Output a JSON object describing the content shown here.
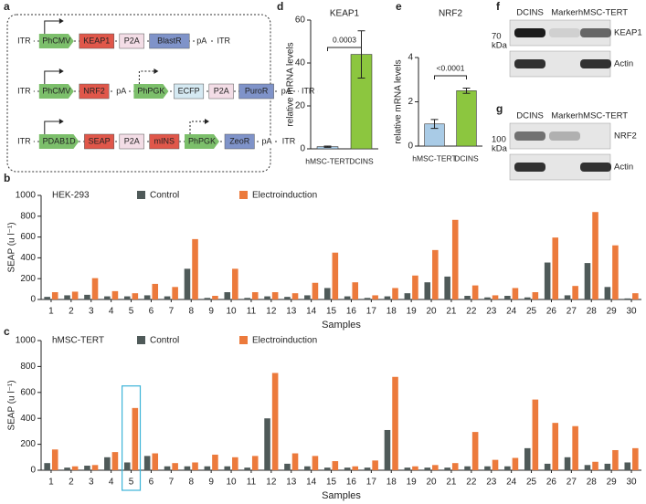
{
  "panel_labels": [
    "a",
    "b",
    "c",
    "d",
    "e",
    "f",
    "g"
  ],
  "diagram": {
    "rows": [
      [
        {
          "text": "ITR"
        },
        {
          "text": "PhCMV",
          "kind": "promoter",
          "color": "#7cbf6b"
        },
        {
          "text": "KEAP1",
          "color": "#e0574a"
        },
        {
          "text": "P2A",
          "color": "#f3dde6"
        },
        {
          "text": "BlastR",
          "color": "#7f93c9"
        },
        {
          "text": "pA"
        },
        {
          "text": "ITR"
        }
      ],
      [
        {
          "text": "ITR"
        },
        {
          "text": "PhCMV",
          "kind": "promoter",
          "color": "#7cbf6b"
        },
        {
          "text": "NRF2",
          "color": "#e0574a"
        },
        {
          "text": "pA"
        },
        {
          "text": "PhPGK",
          "kind": "promoter",
          "color": "#7cbf6b"
        },
        {
          "text": "ECFP",
          "color": "#d5e9f2"
        },
        {
          "text": "P2A",
          "color": "#f3dde6"
        },
        {
          "text": "PuroR",
          "color": "#7f93c9"
        },
        {
          "text": "pA"
        },
        {
          "text": "ITR"
        }
      ],
      [
        {
          "text": "ITR"
        },
        {
          "text": "PDAB1D",
          "kind": "promoter",
          "color": "#7cbf6b"
        },
        {
          "text": "SEAP",
          "color": "#e0574a"
        },
        {
          "text": "P2A",
          "color": "#f3dde6"
        },
        {
          "text": "mINS",
          "color": "#e0574a"
        },
        {
          "text": "PhPGK",
          "kind": "promoter",
          "color": "#7cbf6b"
        },
        {
          "text": "ZeoR",
          "color": "#7f93c9"
        },
        {
          "text": "pA"
        },
        {
          "text": "ITR"
        }
      ]
    ]
  },
  "blots": [
    {
      "headers": [
        "DCINS",
        "Marker",
        "hMSC-TERT"
      ],
      "size": "70",
      "unit": "kDa",
      "rows": [
        "KEAP1",
        "Actin"
      ]
    },
    {
      "headers": [
        "DCINS",
        "Marker",
        "hMSC-TERT"
      ],
      "size": "100",
      "unit": "kDa",
      "rows": [
        "NRF2",
        "Actin"
      ]
    }
  ],
  "chart_data": [
    {
      "type": "grouped_bar",
      "title": "HEK-293",
      "xlabel": "Samples",
      "ylabel": "SEAP (u l⁻¹)",
      "categories": [
        "1",
        "2",
        "3",
        "4",
        "5",
        "6",
        "7",
        "8",
        "9",
        "10",
        "11",
        "12",
        "13",
        "14",
        "15",
        "16",
        "17",
        "18",
        "19",
        "20",
        "21",
        "22",
        "23",
        "24",
        "25",
        "26",
        "27",
        "28",
        "29",
        "30"
      ],
      "series": [
        {
          "name": "Control",
          "color": "#4f5a59",
          "values": [
            25,
            40,
            45,
            30,
            30,
            40,
            30,
            295,
            15,
            70,
            15,
            30,
            25,
            40,
            110,
            30,
            15,
            30,
            60,
            165,
            220,
            35,
            20,
            35,
            20,
            355,
            40,
            350,
            120,
            10
          ]
        },
        {
          "name": "Electroinduction",
          "color": "#ec7a3c",
          "values": [
            70,
            75,
            205,
            80,
            60,
            150,
            120,
            580,
            35,
            295,
            70,
            70,
            60,
            160,
            450,
            165,
            40,
            110,
            230,
            475,
            765,
            135,
            40,
            110,
            70,
            595,
            130,
            840,
            520,
            60
          ]
        }
      ],
      "ylim": [
        0,
        1000
      ],
      "yticks": [
        0,
        200,
        400,
        600,
        800,
        1000
      ]
    },
    {
      "type": "grouped_bar",
      "title": "hMSC-TERT",
      "xlabel": "Samples",
      "ylabel": "SEAP (u l⁻¹)",
      "categories": [
        "1",
        "2",
        "3",
        "4",
        "5",
        "6",
        "7",
        "8",
        "9",
        "10",
        "11",
        "12",
        "13",
        "14",
        "15",
        "16",
        "17",
        "18",
        "19",
        "20",
        "21",
        "22",
        "23",
        "24",
        "25",
        "26",
        "27",
        "28",
        "29",
        "30"
      ],
      "series": [
        {
          "name": "Control",
          "color": "#4f5a59",
          "values": [
            55,
            20,
            35,
            100,
            60,
            110,
            30,
            30,
            30,
            30,
            20,
            400,
            50,
            30,
            20,
            20,
            20,
            310,
            20,
            20,
            20,
            30,
            30,
            30,
            170,
            50,
            100,
            40,
            50,
            60
          ]
        },
        {
          "name": "Electroinduction",
          "color": "#ec7a3c",
          "values": [
            160,
            30,
            40,
            140,
            480,
            130,
            55,
            60,
            120,
            100,
            110,
            750,
            130,
            110,
            70,
            30,
            75,
            720,
            30,
            40,
            55,
            295,
            80,
            95,
            545,
            365,
            340,
            65,
            155,
            170
          ]
        }
      ],
      "ylim": [
        0,
        1000
      ],
      "yticks": [
        0,
        200,
        400,
        600,
        800,
        1000
      ]
    },
    {
      "type": "bar",
      "title": "KEAP1",
      "ylabel": "relative mRNA levels",
      "categories": [
        "hMSC-TERT",
        "DCINS"
      ],
      "values": [
        1,
        44
      ],
      "errors": [
        0.3,
        11
      ],
      "colors": [
        "#a9cbe6",
        "#8cc63f"
      ],
      "annotation": "0.0003",
      "ylim": [
        0,
        60
      ],
      "yticks": [
        0,
        20,
        40,
        60
      ]
    },
    {
      "type": "bar",
      "title": "NRF2",
      "ylabel": "relative mRNA levels",
      "categories": [
        "hMSC-TERT",
        "DCINS"
      ],
      "values": [
        1,
        2.5
      ],
      "errors": [
        0.2,
        0.12
      ],
      "colors": [
        "#a9cbe6",
        "#8cc63f"
      ],
      "annotation": "<0.0001",
      "ylim": [
        0,
        4
      ],
      "yticks": [
        0,
        2,
        4
      ]
    }
  ]
}
